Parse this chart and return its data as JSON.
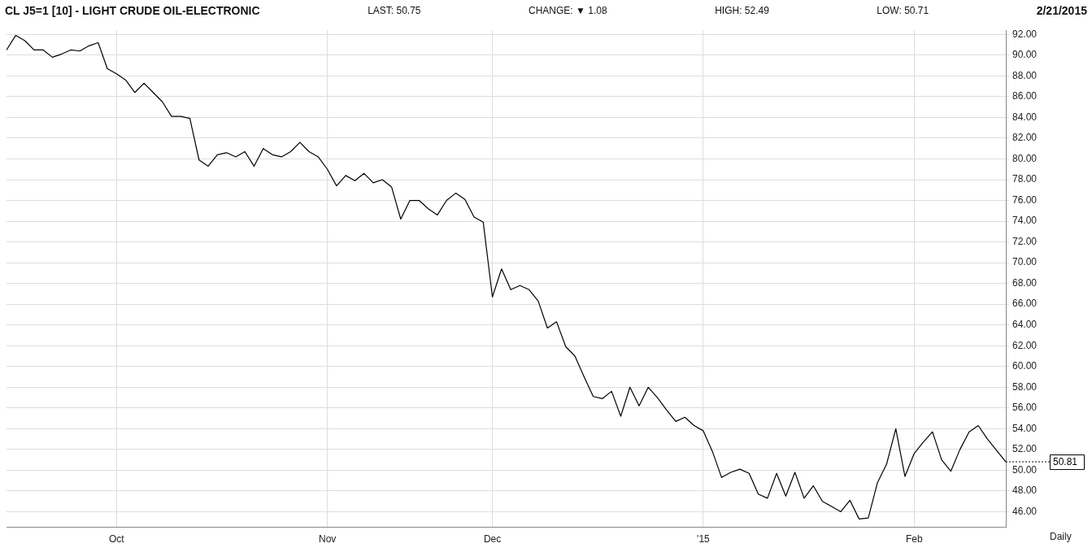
{
  "chart_data": {
    "type": "line",
    "title": "CL J5=1 [10] - LIGHT CRUDE OIL-ELECTRONIC",
    "annotations": [
      "LAST: 50.75",
      "CHANGE: ▼ 1.08",
      "HIGH: 52.49",
      "LOW: 50.71",
      "2/21/2015"
    ],
    "ref_lines": [
      {
        "axis": "y",
        "value": 50.81,
        "label": "50.81"
      }
    ],
    "xlabel": "Daily",
    "categories": [
      null,
      null,
      null,
      null,
      null,
      null,
      null,
      null,
      null,
      null,
      null,
      null,
      "Oct",
      null,
      null,
      null,
      null,
      null,
      null,
      null,
      null,
      null,
      null,
      null,
      null,
      null,
      null,
      null,
      null,
      null,
      null,
      null,
      null,
      null,
      null,
      "Nov",
      null,
      null,
      null,
      null,
      null,
      null,
      null,
      null,
      null,
      null,
      null,
      null,
      null,
      null,
      null,
      null,
      null,
      "Dec",
      null,
      null,
      null,
      null,
      null,
      null,
      null,
      null,
      null,
      null,
      null,
      null,
      null,
      null,
      null,
      null,
      null,
      null,
      null,
      null,
      null,
      null,
      "'15",
      null,
      null,
      null,
      null,
      null,
      null,
      null,
      null,
      null,
      null,
      null,
      null,
      null,
      null,
      null,
      null,
      null,
      null,
      null,
      null,
      null,
      null,
      "Feb",
      null,
      null,
      null,
      null,
      null,
      null,
      null,
      null,
      null,
      null
    ],
    "values": [
      90.5,
      91.9,
      91.4,
      90.5,
      90.5,
      89.8,
      90.1,
      90.5,
      90.4,
      90.9,
      91.2,
      88.7,
      88.2,
      87.6,
      86.4,
      87.3,
      86.4,
      85.5,
      84.1,
      84.1,
      83.9,
      79.9,
      79.3,
      80.4,
      80.6,
      80.2,
      80.7,
      79.3,
      81.0,
      80.4,
      80.2,
      80.7,
      81.6,
      80.7,
      80.2,
      79.0,
      77.4,
      78.4,
      77.9,
      78.6,
      77.7,
      78.0,
      77.3,
      74.2,
      76.0,
      76.0,
      75.2,
      74.6,
      76.0,
      76.7,
      76.1,
      74.4,
      73.9,
      66.7,
      69.4,
      67.4,
      67.8,
      67.4,
      66.3,
      63.7,
      64.3,
      61.9,
      61.0,
      59.0,
      57.1,
      56.9,
      57.6,
      55.2,
      58.0,
      56.2,
      58.0,
      57.0,
      55.8,
      54.7,
      55.1,
      54.3,
      53.8,
      51.8,
      49.3,
      49.8,
      50.1,
      49.7,
      47.7,
      47.3,
      49.7,
      47.5,
      49.8,
      47.3,
      48.5,
      47.0,
      46.5,
      46.0,
      47.1,
      45.3,
      45.4,
      48.8,
      50.6,
      54.0,
      49.4,
      51.6,
      52.7,
      53.7,
      51.0,
      49.9,
      52.0,
      53.7,
      54.3,
      53.0,
      51.9,
      50.81
    ],
    "color": "#000000",
    "ylim": [
      44.5,
      92.4
    ],
    "yticks": [
      {
        "value": 46,
        "label": "46.00"
      },
      {
        "value": 48,
        "label": "48.00"
      },
      {
        "value": 50,
        "label": "50.00"
      },
      {
        "value": 52,
        "label": "52.00"
      },
      {
        "value": 54,
        "label": "54.00"
      },
      {
        "value": 56,
        "label": "56.00"
      },
      {
        "value": 58,
        "label": "58.00"
      },
      {
        "value": 60,
        "label": "60.00"
      },
      {
        "value": 62,
        "label": "62.00"
      },
      {
        "value": 64,
        "label": "64.00"
      },
      {
        "value": 66,
        "label": "66.00"
      },
      {
        "value": 68,
        "label": "68.00"
      },
      {
        "value": 70,
        "label": "70.00"
      },
      {
        "value": 72,
        "label": "72.00"
      },
      {
        "value": 74,
        "label": "74.00"
      },
      {
        "value": 76,
        "label": "76.00"
      },
      {
        "value": 78,
        "label": "78.00"
      },
      {
        "value": 80,
        "label": "80.00"
      },
      {
        "value": 82,
        "label": "82.00"
      },
      {
        "value": 84,
        "label": "84.00"
      },
      {
        "value": 86,
        "label": "86.00"
      },
      {
        "value": 88,
        "label": "88.00"
      },
      {
        "value": 90,
        "label": "90.00"
      },
      {
        "value": 92,
        "label": "92.00"
      }
    ],
    "grid": true,
    "marker": "none",
    "line_style": "solid"
  }
}
